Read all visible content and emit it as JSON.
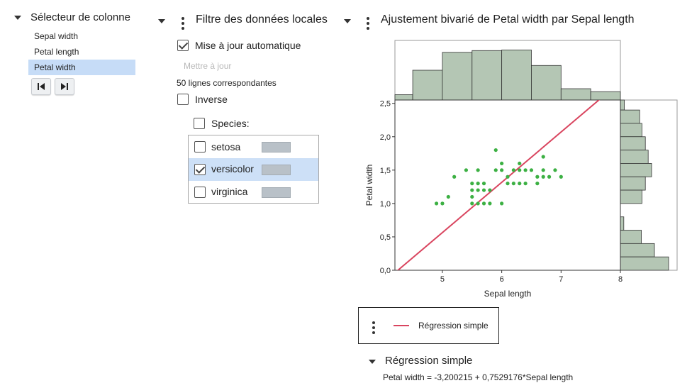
{
  "col_selector": {
    "title": "Sélecteur de colonne",
    "items": [
      "Sepal width",
      "Petal length",
      "Petal width"
    ],
    "selected": "Petal width",
    "first_icon": "skip-first-icon",
    "last_icon": "skip-last-icon"
  },
  "filter": {
    "title": "Filtre des données locales",
    "auto_update_label": "Mise à jour automatique",
    "auto_update_checked": true,
    "update_button": "Mettre à jour",
    "match_text": "50 lignes correspondantes",
    "inverse_label": "Inverse",
    "species_label": "Species:",
    "species": [
      {
        "label": "setosa",
        "checked": false
      },
      {
        "label": "versicolor",
        "checked": true
      },
      {
        "label": "virginica",
        "checked": false
      }
    ],
    "swatch_color": "#b9c1c8"
  },
  "bivariate": {
    "title": "Ajustement bivarié de Petal width par Sepal length",
    "legend_label": "Régression simple",
    "regression_title": "Régression simple",
    "equation": "Petal width = -3,200215 + 0,7529176*Sepal length"
  },
  "chart_data": {
    "type": "scatter",
    "xlabel": "Sepal length",
    "ylabel": "Petal width",
    "xlim": [
      4.2,
      8.0
    ],
    "ylim": [
      0.0,
      2.55
    ],
    "x_ticks": [
      "5",
      "6",
      "7",
      "8"
    ],
    "x_tick_values": [
      5,
      6,
      7,
      8
    ],
    "y_ticks": [
      "0,0",
      "0,5",
      "1,0",
      "1,5",
      "2,0",
      "2,5"
    ],
    "y_tick_values": [
      0,
      0.5,
      1.0,
      1.5,
      2.0,
      2.5
    ],
    "point_color": "#3cb043",
    "line_color": "#d9455f",
    "hist_color": "#b4c6b4",
    "regression": {
      "intercept": -3.200215,
      "slope": 0.7529176
    },
    "points": [
      [
        4.9,
        1.0
      ],
      [
        5.0,
        1.0
      ],
      [
        5.1,
        1.1
      ],
      [
        5.2,
        1.4
      ],
      [
        5.4,
        1.5
      ],
      [
        5.5,
        1.3
      ],
      [
        5.5,
        1.2
      ],
      [
        5.5,
        1.1
      ],
      [
        5.5,
        1.0
      ],
      [
        5.6,
        1.3
      ],
      [
        5.6,
        1.2
      ],
      [
        5.6,
        1.0
      ],
      [
        5.6,
        1.5
      ],
      [
        5.7,
        1.3
      ],
      [
        5.7,
        1.2
      ],
      [
        5.7,
        1.0
      ],
      [
        5.8,
        1.2
      ],
      [
        5.8,
        1.0
      ],
      [
        5.9,
        1.5
      ],
      [
        5.9,
        1.8
      ],
      [
        6.0,
        1.6
      ],
      [
        6.0,
        1.5
      ],
      [
        6.0,
        1.0
      ],
      [
        6.1,
        1.4
      ],
      [
        6.1,
        1.3
      ],
      [
        6.2,
        1.5
      ],
      [
        6.2,
        1.3
      ],
      [
        6.3,
        1.6
      ],
      [
        6.3,
        1.5
      ],
      [
        6.3,
        1.3
      ],
      [
        6.4,
        1.5
      ],
      [
        6.4,
        1.3
      ],
      [
        6.5,
        1.5
      ],
      [
        6.6,
        1.3
      ],
      [
        6.6,
        1.4
      ],
      [
        6.7,
        1.7
      ],
      [
        6.7,
        1.5
      ],
      [
        6.7,
        1.4
      ],
      [
        6.8,
        1.4
      ],
      [
        6.9,
        1.5
      ],
      [
        7.0,
        1.4
      ]
    ],
    "hist_top": {
      "bins": [
        [
          4.2,
          4.5
        ],
        [
          4.5,
          5.0
        ],
        [
          5.0,
          5.5
        ],
        [
          5.5,
          6.0
        ],
        [
          6.0,
          6.5
        ],
        [
          6.5,
          7.0
        ],
        [
          7.0,
          7.5
        ],
        [
          7.5,
          8.0
        ]
      ],
      "heights": [
        0.09,
        0.5,
        0.8,
        0.83,
        0.84,
        0.58,
        0.19,
        0.14
      ]
    },
    "hist_right": {
      "bins": [
        [
          2.4,
          2.55
        ],
        [
          2.2,
          2.4
        ],
        [
          2.0,
          2.2
        ],
        [
          1.8,
          2.0
        ],
        [
          1.6,
          1.8
        ],
        [
          1.4,
          1.6
        ],
        [
          1.2,
          1.4
        ],
        [
          1.0,
          1.2
        ],
        [
          0.6,
          0.8
        ],
        [
          0.4,
          0.6
        ],
        [
          0.2,
          0.4
        ],
        [
          0.0,
          0.2
        ]
      ],
      "widths": [
        0.07,
        0.34,
        0.38,
        0.44,
        0.49,
        0.55,
        0.44,
        0.38,
        0.06,
        0.37,
        0.6,
        0.85
      ]
    }
  }
}
